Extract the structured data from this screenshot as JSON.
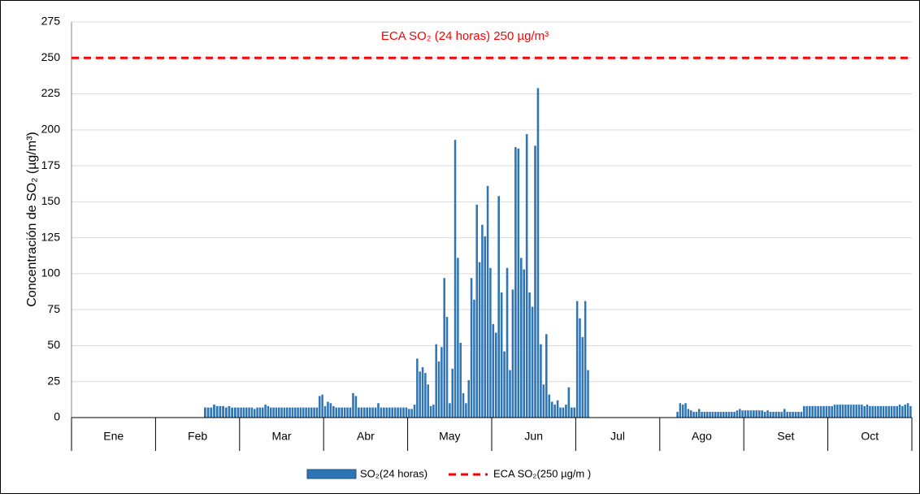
{
  "chart_data": {
    "type": "bar",
    "y_label": "Concentración de SO₂ (µg/m³)",
    "annotation": "ECA SO₂ (24 horas) 250 µg/m³",
    "categories": [
      "Ene",
      "Feb",
      "Mar",
      "Abr",
      "May",
      "Jun",
      "Jul",
      "Ago",
      "Set",
      "Oct"
    ],
    "series": [
      {
        "name": "SO₂(24 horas)",
        "color": "#2e75b6",
        "values": [
          [
            null,
            null,
            null,
            null,
            null,
            null,
            null,
            null,
            null,
            null,
            null,
            null,
            null,
            null,
            null,
            null,
            null,
            null,
            null,
            null,
            null,
            null,
            null,
            null,
            null,
            null,
            null,
            null,
            null,
            null,
            null
          ],
          [
            null,
            null,
            null,
            null,
            null,
            null,
            null,
            null,
            null,
            null,
            null,
            null,
            null,
            null,
            null,
            null,
            7,
            7,
            7,
            9,
            8,
            8,
            8,
            7,
            8,
            7,
            7,
            7
          ],
          [
            7,
            7,
            7,
            7,
            7,
            6,
            7,
            7,
            7,
            9,
            8,
            7,
            7,
            7,
            7,
            7,
            7,
            7,
            7,
            7,
            7,
            7,
            7,
            7,
            7,
            7,
            7,
            7,
            7,
            15,
            16
          ],
          [
            8,
            11,
            10,
            8,
            7,
            7,
            7,
            7,
            7,
            7,
            17,
            15,
            7,
            7,
            7,
            7,
            7,
            7,
            7,
            10,
            7,
            7,
            7,
            7,
            7,
            7,
            7,
            7,
            7,
            7
          ],
          [
            6,
            6,
            9,
            41,
            32,
            35,
            31,
            23,
            8,
            9,
            51,
            39,
            49,
            97,
            70,
            10,
            34,
            193,
            111,
            52,
            17,
            10,
            26,
            97,
            82,
            148,
            108,
            134,
            126,
            161,
            104
          ],
          [
            65,
            59,
            154,
            87,
            46,
            104,
            33,
            89,
            188,
            187,
            111,
            103,
            197,
            87,
            77,
            189,
            229,
            51,
            23,
            58,
            16,
            11,
            9,
            12,
            7,
            7,
            9,
            21,
            7,
            7
          ],
          [
            81,
            69,
            56,
            81,
            33,
            null,
            null,
            null,
            null,
            null,
            null,
            null,
            null,
            null,
            null,
            null,
            null,
            null,
            null,
            null,
            null,
            null,
            null,
            null,
            null,
            null,
            null,
            null,
            null,
            null,
            null
          ],
          [
            null,
            null,
            null,
            null,
            null,
            null,
            4,
            10,
            9,
            10,
            6,
            5,
            4,
            4,
            6,
            4,
            4,
            4,
            4,
            4,
            4,
            4,
            4,
            4,
            4,
            4,
            4,
            4,
            5,
            6,
            5
          ],
          [
            5,
            5,
            5,
            5,
            5,
            5,
            5,
            4,
            5,
            4,
            4,
            4,
            4,
            4,
            6,
            4,
            4,
            4,
            4,
            4,
            4,
            8,
            8,
            8,
            8,
            8,
            8,
            8,
            8,
            8
          ],
          [
            8,
            8,
            9,
            9,
            9,
            9,
            9,
            9,
            9,
            9,
            9,
            9,
            9,
            8,
            9,
            8,
            8,
            8,
            8,
            8,
            8,
            8,
            8,
            8,
            8,
            8,
            9,
            8,
            9,
            10,
            8
          ]
        ]
      }
    ],
    "reference_line": {
      "name": "ECA SO₂(250 µg/m )",
      "value": 250,
      "color": "#ff0000"
    },
    "ylim": [
      0,
      275
    ],
    "yticks": [
      0,
      25,
      50,
      75,
      100,
      125,
      150,
      175,
      200,
      225,
      250,
      275
    ],
    "grid": true
  }
}
